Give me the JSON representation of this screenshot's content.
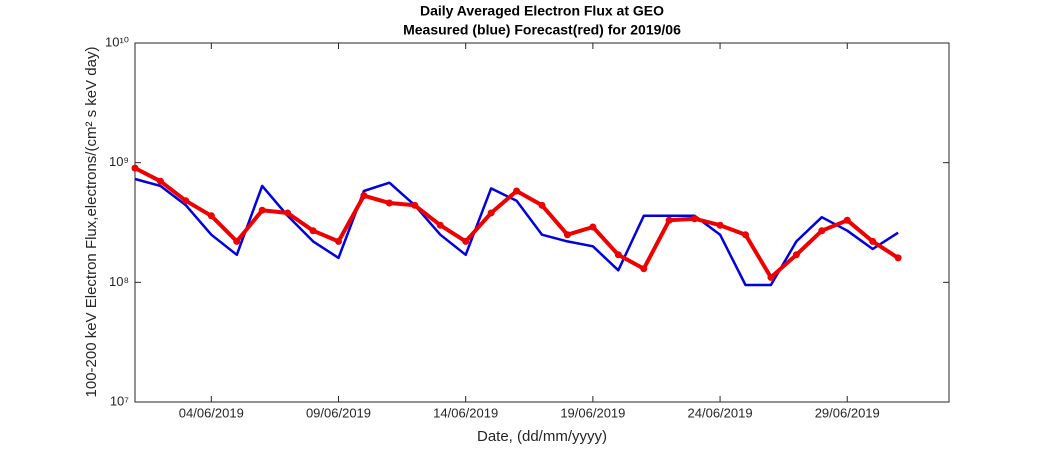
{
  "chart_data": {
    "type": "line",
    "title": "Daily Averaged Electron Flux at GEO",
    "subtitle": "Measured (blue) Forecast(red) for 2019/06",
    "xlabel": "Date, (dd/mm/yyyy)",
    "ylabel": "100-200 keV Electron Flux,electrons/(cm² s keV day)",
    "log_y": true,
    "x": [
      "2019-06-01",
      "2019-06-02",
      "2019-06-03",
      "2019-06-04",
      "2019-06-05",
      "2019-06-06",
      "2019-06-07",
      "2019-06-08",
      "2019-06-09",
      "2019-06-10",
      "2019-06-11",
      "2019-06-12",
      "2019-06-13",
      "2019-06-14",
      "2019-06-15",
      "2019-06-16",
      "2019-06-17",
      "2019-06-18",
      "2019-06-19",
      "2019-06-20",
      "2019-06-21",
      "2019-06-22",
      "2019-06-23",
      "2019-06-24",
      "2019-06-25",
      "2019-06-26",
      "2019-06-27",
      "2019-06-28",
      "2019-06-29",
      "2019-06-30",
      "2019-07-01"
    ],
    "series": [
      {
        "name": "Measured",
        "color": "#0000e0",
        "marker": false,
        "values": [
          730000000,
          640000000,
          440000000,
          250000000,
          170000000,
          640000000,
          360000000,
          220000000,
          160000000,
          580000000,
          680000000,
          440000000,
          250000000,
          170000000,
          610000000,
          480000000,
          250000000,
          220000000,
          200000000,
          126000000,
          360000000,
          360000000,
          360000000,
          250000000,
          95000000,
          95000000,
          220000000,
          350000000,
          270000000,
          190000000,
          260000000
        ]
      },
      {
        "name": "Forecast",
        "color": "#ee0000",
        "marker": true,
        "values": [
          900000000,
          700000000,
          480000000,
          360000000,
          220000000,
          400000000,
          380000000,
          270000000,
          220000000,
          530000000,
          460000000,
          440000000,
          300000000,
          220000000,
          380000000,
          580000000,
          440000000,
          250000000,
          290000000,
          170000000,
          130000000,
          330000000,
          340000000,
          300000000,
          250000000,
          110000000,
          170000000,
          270000000,
          330000000,
          220000000,
          160000000
        ]
      }
    ],
    "xlim": [
      "2019-06-01",
      "2019-07-03"
    ],
    "xticks": [
      {
        "value": "2019-06-04",
        "label": "04/06/2019"
      },
      {
        "value": "2019-06-09",
        "label": "09/06/2019"
      },
      {
        "value": "2019-06-14",
        "label": "14/06/2019"
      },
      {
        "value": "2019-06-19",
        "label": "19/06/2019"
      },
      {
        "value": "2019-06-24",
        "label": "24/06/2019"
      },
      {
        "value": "2019-06-29",
        "label": "29/06/2019"
      }
    ],
    "ylim": [
      10000000,
      10000000000
    ],
    "yticks": [
      {
        "value": 10000000,
        "label": "10⁷"
      },
      {
        "value": 100000000,
        "label": "10⁸"
      },
      {
        "value": 1000000000,
        "label": "10⁹"
      },
      {
        "value": 10000000000,
        "label": "10¹⁰"
      }
    ]
  }
}
